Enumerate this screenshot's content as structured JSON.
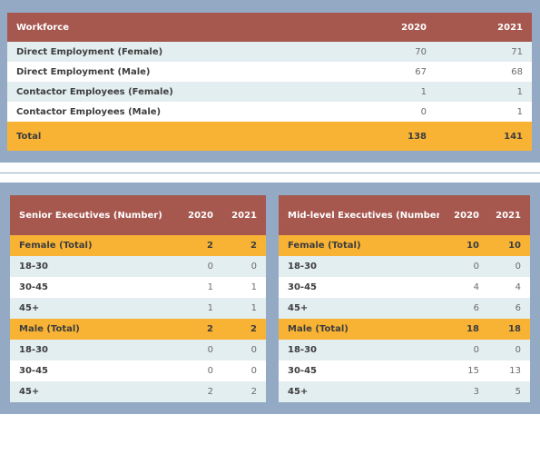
{
  "workforce": {
    "header": [
      "Workforce",
      "2020",
      "2021"
    ],
    "rows": [
      [
        "Direct Employment (Female)",
        "70",
        "71"
      ],
      [
        "Direct Employment (Male)",
        "67",
        "68"
      ],
      [
        "Contactor Employees (Female)",
        "1",
        "1"
      ],
      [
        "Contactor Employees (Male)",
        "0",
        "1"
      ]
    ],
    "total": [
      "Total",
      "138",
      "141"
    ]
  },
  "senior": {
    "header": [
      "Senior Executives (Number)",
      "2020",
      "2021"
    ],
    "rows": [
      [
        "Female (Total)",
        "2",
        "2"
      ],
      [
        "18-30",
        "0",
        "0"
      ],
      [
        "30-45",
        "1",
        "1"
      ],
      [
        "45+",
        "1",
        "1"
      ],
      [
        "Male (Total)",
        "2",
        "2"
      ],
      [
        "18-30",
        "0",
        "0"
      ],
      [
        "30-45",
        "0",
        "0"
      ],
      [
        "45+",
        "2",
        "2"
      ]
    ]
  },
  "mid": {
    "header": [
      "Mid-level Executives (Number)",
      "2020",
      "2021"
    ],
    "rows": [
      [
        "Female (Total)",
        "10",
        "10"
      ],
      [
        "18-30",
        "0",
        "0"
      ],
      [
        "30-45",
        "4",
        "4"
      ],
      [
        "45+",
        "6",
        "6"
      ],
      [
        "Male (Total)",
        "18",
        "18"
      ],
      [
        "18-30",
        "0",
        "0"
      ],
      [
        "30-45",
        "15",
        "13"
      ],
      [
        "45+",
        "3",
        "5"
      ]
    ]
  },
  "colors": {
    "header": "#a6574e",
    "highlight": "#f8b335",
    "row_alt": "#e3eef1",
    "band": "#93a9c4"
  }
}
